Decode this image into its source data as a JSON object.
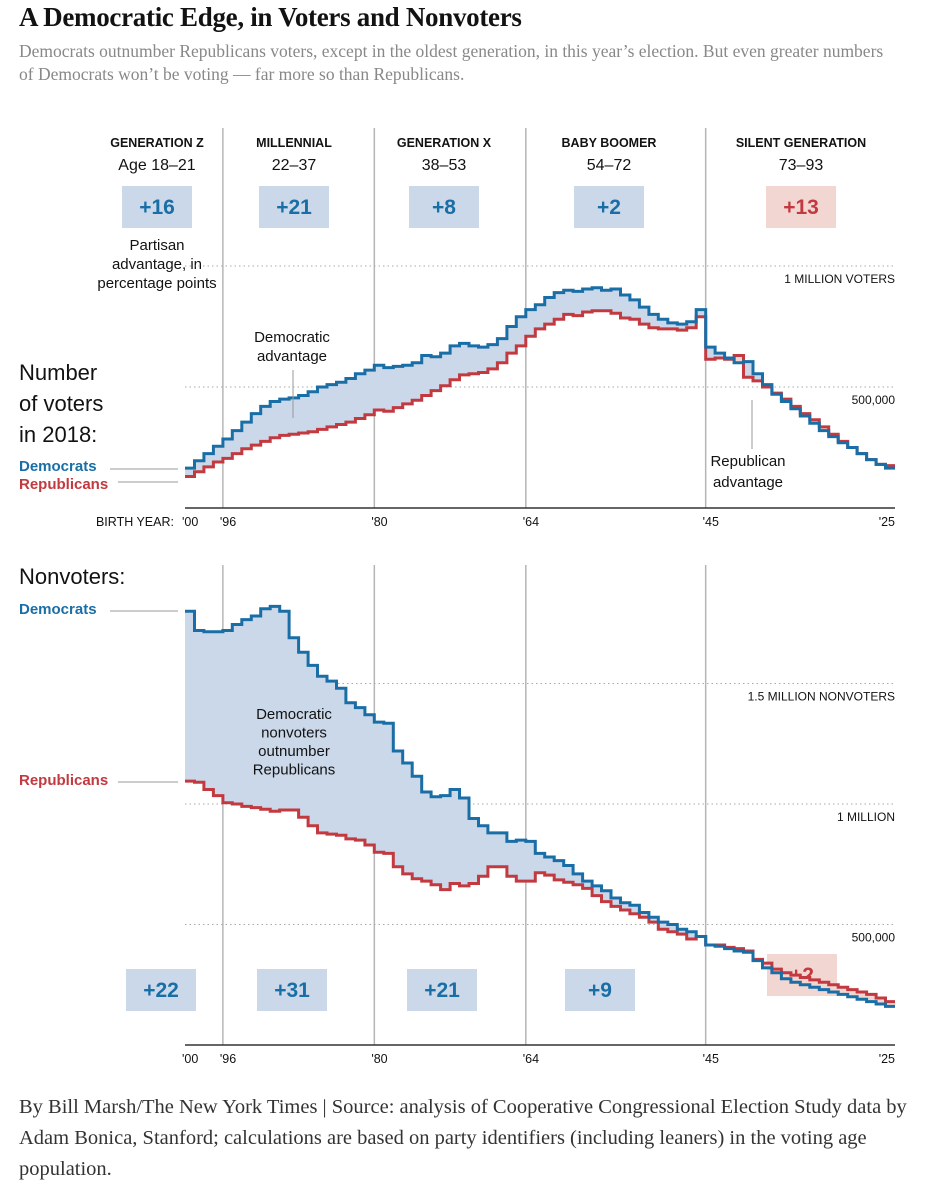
{
  "title": "A Democratic Edge, in Voters and Nonvoters",
  "subtitle": "Democrats outnumber Republicans voters, except in the oldest generation, in this year’s election. But even greater numbers of Democrats won’t be voting — far more so than Republicans.",
  "credit": "By Bill Marsh/The New York Times | Source: analysis of Cooperative Congressional Election Study data by Adam Bonica, Stanford; calculations are based on party identifiers (including leaners) in the voting age population.",
  "colors": {
    "dem": "#1a6ea6",
    "rep": "#c23a40",
    "dem_fill": "#cad8ea",
    "rep_fill": "#f2d6d2",
    "grid": "#aaaaaa",
    "divider": "#b5b5b5"
  },
  "generations": [
    {
      "name": "GENERATION Z",
      "ages": "Age 18–21",
      "voter_adv": "+16",
      "voter_party": "dem",
      "nonvoter_adv": "+22",
      "nonvoter_party": "dem"
    },
    {
      "name": "MILLENNIAL",
      "ages": "22–37",
      "voter_adv": "+21",
      "voter_party": "dem",
      "nonvoter_adv": "+31",
      "nonvoter_party": "dem"
    },
    {
      "name": "GENERATION X",
      "ages": "38–53",
      "voter_adv": "+8",
      "voter_party": "dem",
      "nonvoter_adv": "+21",
      "nonvoter_party": "dem"
    },
    {
      "name": "BABY BOOMER",
      "ages": "54–72",
      "voter_adv": "+2",
      "voter_party": "dem",
      "nonvoter_adv": "+9",
      "nonvoter_party": "dem"
    },
    {
      "name": "SILENT GENERATION",
      "ages": "73–93",
      "voter_adv": "+13",
      "voter_party": "rep",
      "nonvoter_adv": "+2",
      "nonvoter_party": "rep"
    }
  ],
  "labels": {
    "partisan_note": [
      "Partisan",
      "advantage, in",
      "percentage points"
    ],
    "voters_heading": [
      "Number",
      "of voters",
      "in 2018:"
    ],
    "nonvoters_heading": "Nonvoters:",
    "democrats": "Democrats",
    "republicans": "Republicans",
    "birth_year": "BIRTH YEAR:",
    "dem_adv": [
      "Democratic",
      "advantage"
    ],
    "rep_adv": [
      "Republican",
      "advantage"
    ],
    "nonvoter_note": [
      "Democratic",
      "nonvoters",
      "outnumber",
      "Republicans"
    ]
  },
  "chart_data": [
    {
      "type": "line",
      "title": "Number of voters in 2018",
      "xlabel": "Birth year",
      "x_ticks": [
        "'00",
        "'96",
        "'80",
        "'64",
        "'45",
        "'25"
      ],
      "x_tick_values": [
        2000,
        1996,
        1980,
        1964,
        1945,
        1925
      ],
      "xlim": [
        2000,
        1925
      ],
      "ylim": [
        0,
        1000000
      ],
      "y_ticks": [
        500000,
        1000000
      ],
      "y_tick_labels": [
        "500,000",
        "1 MILLION VOTERS"
      ],
      "step": true,
      "x": [
        2000,
        1999,
        1998,
        1997,
        1996,
        1995,
        1994,
        1993,
        1992,
        1991,
        1990,
        1989,
        1988,
        1987,
        1986,
        1985,
        1984,
        1983,
        1982,
        1981,
        1980,
        1979,
        1978,
        1977,
        1976,
        1975,
        1974,
        1973,
        1972,
        1971,
        1970,
        1969,
        1968,
        1967,
        1966,
        1965,
        1964,
        1963,
        1962,
        1961,
        1960,
        1959,
        1958,
        1957,
        1956,
        1955,
        1954,
        1953,
        1952,
        1951,
        1950,
        1949,
        1948,
        1947,
        1946,
        1945,
        1944,
        1943,
        1942,
        1941,
        1940,
        1939,
        1938,
        1937,
        1936,
        1935,
        1934,
        1933,
        1932,
        1931,
        1930,
        1929,
        1928,
        1927,
        1926
      ],
      "series": [
        {
          "name": "Democrats",
          "values": [
            165,
            195,
            225,
            255,
            285,
            320,
            355,
            390,
            420,
            440,
            450,
            455,
            465,
            480,
            500,
            510,
            520,
            535,
            555,
            570,
            590,
            580,
            585,
            590,
            600,
            630,
            625,
            640,
            670,
            680,
            670,
            665,
            675,
            700,
            750,
            790,
            820,
            840,
            870,
            890,
            900,
            895,
            905,
            910,
            900,
            905,
            880,
            860,
            830,
            800,
            780,
            765,
            760,
            770,
            820,
            665,
            640,
            620,
            600,
            605,
            555,
            510,
            470,
            440,
            410,
            380,
            350,
            320,
            295,
            270,
            250,
            225,
            200,
            180,
            165
          ]
        },
        {
          "name": "Republicans",
          "values": [
            130,
            150,
            170,
            190,
            205,
            225,
            245,
            260,
            275,
            290,
            300,
            305,
            310,
            315,
            325,
            335,
            345,
            355,
            370,
            385,
            405,
            400,
            415,
            430,
            445,
            465,
            485,
            505,
            530,
            550,
            555,
            560,
            575,
            600,
            640,
            670,
            710,
            740,
            760,
            780,
            800,
            795,
            810,
            815,
            815,
            805,
            785,
            780,
            760,
            745,
            740,
            740,
            735,
            745,
            790,
            615,
            620,
            615,
            630,
            540,
            525,
            500,
            475,
            450,
            420,
            390,
            365,
            335,
            305,
            275,
            250,
            225,
            200,
            180,
            175
          ]
        }
      ],
      "annotations": [
        "Democratic advantage",
        "Republican advantage"
      ]
    },
    {
      "type": "line",
      "title": "Nonvoters",
      "xlabel": "Birth year",
      "x_ticks": [
        "'00",
        "'96",
        "'80",
        "'64",
        "'45",
        "'25"
      ],
      "x_tick_values": [
        2000,
        1996,
        1980,
        1964,
        1945,
        1925
      ],
      "xlim": [
        2000,
        1925
      ],
      "ylim": [
        0,
        1500000
      ],
      "y_ticks": [
        500000,
        1000000,
        1500000
      ],
      "y_tick_labels": [
        "500,000",
        "1 MILLION",
        "1.5 MILLION NONVOTERS"
      ],
      "step": true,
      "x": [
        2000,
        1999,
        1998,
        1997,
        1996,
        1995,
        1994,
        1993,
        1992,
        1991,
        1990,
        1989,
        1988,
        1987,
        1986,
        1985,
        1984,
        1983,
        1982,
        1981,
        1980,
        1979,
        1978,
        1977,
        1976,
        1975,
        1974,
        1973,
        1972,
        1971,
        1970,
        1969,
        1968,
        1967,
        1966,
        1965,
        1964,
        1963,
        1962,
        1961,
        1960,
        1959,
        1958,
        1957,
        1956,
        1955,
        1954,
        1953,
        1952,
        1951,
        1950,
        1949,
        1948,
        1947,
        1946,
        1945,
        1944,
        1943,
        1942,
        1941,
        1940,
        1939,
        1938,
        1937,
        1936,
        1935,
        1934,
        1933,
        1932,
        1931,
        1930,
        1929,
        1928,
        1927,
        1926
      ],
      "series": [
        {
          "name": "Democrats",
          "values": [
            1800,
            1720,
            1715,
            1715,
            1720,
            1745,
            1765,
            1780,
            1810,
            1820,
            1800,
            1690,
            1630,
            1575,
            1530,
            1510,
            1480,
            1420,
            1400,
            1370,
            1340,
            1335,
            1220,
            1170,
            1115,
            1050,
            1030,
            1035,
            1060,
            1025,
            940,
            910,
            880,
            880,
            845,
            850,
            845,
            795,
            780,
            765,
            745,
            710,
            680,
            660,
            640,
            610,
            590,
            580,
            550,
            530,
            510,
            500,
            480,
            470,
            450,
            415,
            410,
            400,
            390,
            385,
            350,
            320,
            300,
            275,
            260,
            250,
            240,
            230,
            220,
            210,
            200,
            190,
            180,
            170,
            160
          ]
        },
        {
          "name": "Republicans",
          "values": [
            1095,
            1090,
            1060,
            1035,
            1005,
            1000,
            990,
            985,
            978,
            970,
            975,
            975,
            945,
            910,
            880,
            875,
            870,
            855,
            850,
            830,
            800,
            795,
            740,
            710,
            690,
            680,
            665,
            645,
            670,
            660,
            670,
            700,
            740,
            740,
            700,
            680,
            680,
            715,
            705,
            685,
            675,
            665,
            650,
            620,
            595,
            575,
            560,
            545,
            530,
            510,
            480,
            470,
            460,
            440,
            450,
            415,
            415,
            405,
            400,
            390,
            355,
            340,
            315,
            300,
            290,
            280,
            270,
            260,
            250,
            240,
            230,
            220,
            210,
            195,
            180
          ]
        }
      ],
      "annotations": [
        "Democratic nonvoters outnumber Republicans"
      ]
    }
  ]
}
